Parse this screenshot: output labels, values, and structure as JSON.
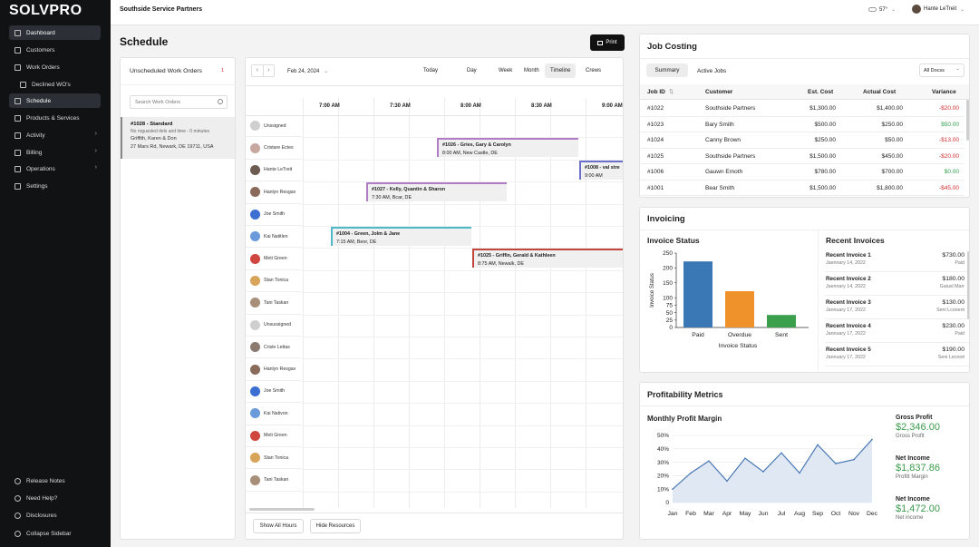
{
  "sidebar": {
    "logo": "SOLVPRO",
    "items": [
      {
        "label": "Dashboard",
        "icon": "grid-icon"
      },
      {
        "label": "Customers",
        "icon": "users-icon"
      },
      {
        "label": "Work Orders",
        "icon": "wrench-icon"
      },
      {
        "label": "Declined WO's",
        "icon": "document-icon"
      },
      {
        "label": "Schedule",
        "icon": "calendar-icon"
      },
      {
        "label": "Products & Services",
        "icon": "box-icon"
      },
      {
        "label": "Activity",
        "icon": "activity-icon"
      },
      {
        "label": "Billing",
        "icon": "billing-icon"
      },
      {
        "label": "Operations",
        "icon": "operations-icon"
      },
      {
        "label": "Settings",
        "icon": "gear-icon"
      }
    ],
    "footer": [
      {
        "label": "Release Notes",
        "icon": "notes-icon"
      },
      {
        "label": "Need Help?",
        "icon": "help-icon"
      },
      {
        "label": "Disclosures",
        "icon": "info-icon"
      },
      {
        "label": "Collapse Sidebar",
        "icon": "chevron-left-icon"
      }
    ]
  },
  "header": {
    "company": "Southside Service Partners",
    "weather": "57°",
    "user": "Hante LeTreit"
  },
  "schedule": {
    "title": "Schedule",
    "print_label": "Print",
    "unscheduled_title": "Unscheduled Work Orders",
    "unscheduled_count": "1",
    "search_placeholder": "Search Work Orders",
    "wo": {
      "title": "#1028 - Standard",
      "line1": "No rogussted dels and time - 0 minutes",
      "line2": "Griffith, Karen & Don",
      "line3": "27 Mars Rd, Newark, DE 19711, USA"
    },
    "date": "Feb 24, 2024",
    "today_label": "Today",
    "views": [
      "Day",
      "Week",
      "Month",
      "Timeline",
      "Crews"
    ],
    "times": [
      "7:00 AM",
      "7:30 AM",
      "8:00 AM",
      "8:30 AM",
      "9:00 AM"
    ],
    "resources": [
      "Unssigned",
      "Cristare Ectes",
      "Hante LeTreit",
      "Hanlyn Resgav",
      "Joe Smith",
      "Kai Natitlen",
      "Meti Green",
      "Stan Tonica",
      "Tani Taskan",
      "Unsussigned",
      "Crisle Lettas",
      "Hanlyn Resgav",
      "Joe Smith",
      "Kai Nativon",
      "Meti Green",
      "Stan Tonica",
      "Tani Taskan"
    ],
    "appointments": [
      {
        "title": "#1026 - Gries, Gary & Carolyn",
        "sub": "8:00 AM, New Castle, DE"
      },
      {
        "title": "#1008 - val stre",
        "sub": "9:00 AM"
      },
      {
        "title": "#1027 - Kelly, Quantin & Sharon",
        "sub": "7:30 AM, Bcar, DE"
      },
      {
        "title": "#1004 - Green, Jolm & Jane",
        "sub": "7:15 AM, Beor, DE"
      },
      {
        "title": "#1025 - Griffin, Gerald & Kathleen",
        "sub": "8:75 AM, Newalk, DE"
      }
    ],
    "show_hours_label": "Show All Hours",
    "hide_resources_label": "Hide Resources"
  },
  "job_costing": {
    "title": "Job Costing",
    "tabs": [
      "Summary",
      "Active Jobs"
    ],
    "filter": "All Docss",
    "columns": [
      "Job ID",
      "Customer",
      "Est. Cost",
      "Actual Cost",
      "Variance"
    ],
    "rows": [
      {
        "id": "#1022",
        "customer": "Southside Partners",
        "est": "$1,300.00",
        "actual": "$1,400.00",
        "variance": "-$20.00",
        "color": "#d32f2f"
      },
      {
        "id": "#1023",
        "customer": "Bary Smith",
        "est": "$500.00",
        "actual": "$250.00",
        "variance": "$50.00",
        "color": "#2e9e48"
      },
      {
        "id": "#1024",
        "customer": "Canny Brown",
        "est": "$250.00",
        "actual": "$50.00",
        "variance": "-$13.00",
        "color": "#d32f2f"
      },
      {
        "id": "#1025",
        "customer": "Southside Partners",
        "est": "$1,500.00",
        "actual": "$450.00",
        "variance": "-$20.00",
        "color": "#d32f2f"
      },
      {
        "id": "#1006",
        "customer": "Gauwn Emoth",
        "est": "$780.00",
        "actual": "$700.00",
        "variance": "$0.00",
        "color": "#2e9e48"
      },
      {
        "id": "#1001",
        "customer": "Bear Smith",
        "est": "$1,500.00",
        "actual": "$1,800.00",
        "variance": "-$45.00",
        "color": "#d32f2f"
      }
    ]
  },
  "invoicing": {
    "title": "Invoicing",
    "status_title": "Invoice Status",
    "recent_title": "Recent Invoices",
    "recent": [
      {
        "name": "Recent Invoice 1",
        "date": "Jaennary 14, 2022",
        "amount": "$730.00",
        "status": "Paid"
      },
      {
        "name": "Recent Invoice 2",
        "date": "Jaennary 14, 2022",
        "amount": "$180.00",
        "status": "Gaiusl Marr"
      },
      {
        "name": "Recent Invoice 3",
        "date": "Jannuary 17, 2022",
        "amount": "$130.00",
        "status": "Seni Lconent"
      },
      {
        "name": "Recent Invoice 4",
        "date": "Jannuary 17, 2022",
        "amount": "$230.00",
        "status": "Paid"
      },
      {
        "name": "Recent Invoice 5",
        "date": "Jannuary 17, 2022",
        "amount": "$190.00",
        "status": "Seni Lecnoit"
      }
    ]
  },
  "profitability": {
    "title": "Profitability Metrics",
    "chart_title": "Monthly Profit Margin",
    "metrics": [
      {
        "label": "Gross Profit",
        "value": "$2,346.00",
        "sub": "Gross Profit"
      },
      {
        "label": "Net Income",
        "value": "$1,837.86",
        "sub": "Profitt Margin"
      },
      {
        "label": "Net Income",
        "value": "$1,472.00",
        "sub": "Net income"
      }
    ]
  },
  "chart_data": [
    {
      "type": "bar",
      "title": "",
      "xlabel": "Invoice Status",
      "ylabel": "Invoice Status",
      "categories": [
        "Paid",
        "Overdue",
        "Sent"
      ],
      "values": [
        222,
        122,
        42
      ],
      "colors": [
        "#3a78b5",
        "#f0922b",
        "#3aa04c"
      ],
      "ylim": [
        0,
        250
      ],
      "yticks": [
        "0",
        "25",
        "50",
        "75",
        "100",
        "150",
        "200",
        "250"
      ]
    },
    {
      "type": "area",
      "title": "",
      "categories": [
        "Jan",
        "Feb",
        "Mar",
        "Apr",
        "May",
        "Jun",
        "Jul",
        "Aug",
        "Sep",
        "Oct",
        "Nov",
        "Dec"
      ],
      "values": [
        10,
        22,
        31,
        16,
        33,
        23,
        37,
        22,
        43,
        29,
        32,
        47
      ],
      "ylim": [
        0,
        50
      ],
      "yticks": [
        "0",
        "10%",
        "20%",
        "30%",
        "40%",
        "50%"
      ],
      "color": "#4a78b4"
    }
  ]
}
